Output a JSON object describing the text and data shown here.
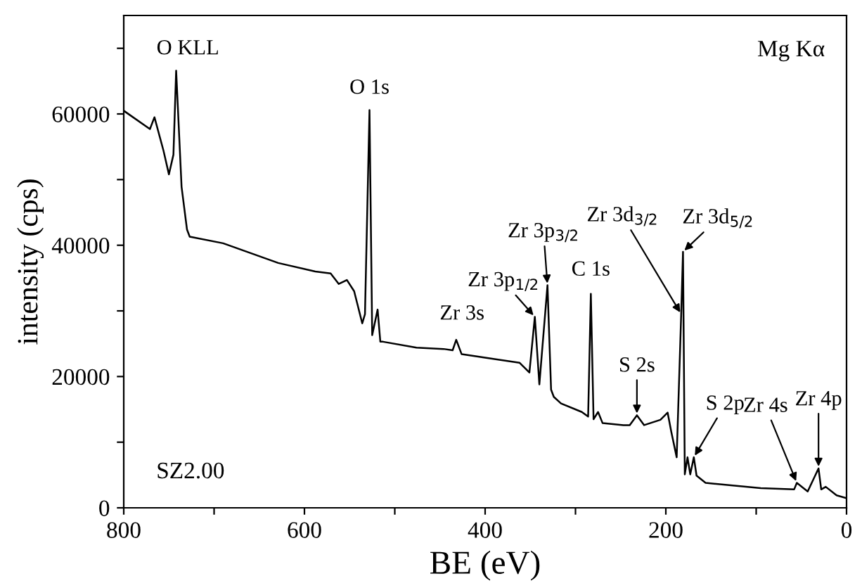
{
  "chart_data": {
    "type": "line",
    "xlabel": "BE (eV)",
    "ylabel": "intensity (cps)",
    "xlim": [
      800,
      0
    ],
    "xticks": [
      800,
      {
        "value": 700,
        "label": null
      },
      600,
      {
        "value": 500,
        "label": null
      },
      400,
      {
        "value": 300,
        "label": null
      },
      200,
      {
        "value": 100,
        "label": null
      },
      0
    ],
    "ylim": [
      0,
      75000
    ],
    "yticks": [
      0,
      {
        "value": 10000,
        "label": null
      },
      20000,
      {
        "value": 30000,
        "label": null
      },
      40000,
      {
        "value": 50000,
        "label": null
      },
      60000,
      {
        "value": 70000,
        "label": null
      }
    ],
    "grid": false,
    "legend": false,
    "marker": "none",
    "line_style": "solid",
    "series": [
      {
        "color": "#000000",
        "x": [
          800,
          797,
          771,
          766,
          756,
          750,
          745,
          742,
          736,
          730,
          727,
          690,
          629,
          588,
          571,
          562,
          553,
          545,
          536,
          533,
          528,
          525,
          519,
          516,
          513,
          476,
          446,
          436,
          432,
          426,
          362,
          351,
          345,
          340,
          331,
          327,
          324,
          316,
          293,
          286,
          283,
          280,
          275,
          270,
          247,
          240,
          232,
          224,
          206,
          198,
          194,
          188,
          183,
          181,
          179,
          176,
          173,
          169,
          166,
          156,
          95,
          58,
          55,
          43,
          31,
          28,
          23,
          11,
          1
        ],
        "values": [
          60500,
          60200,
          57700,
          59500,
          54400,
          50800,
          53800,
          66600,
          48900,
          42400,
          41300,
          40300,
          37300,
          36000,
          35700,
          34100,
          34700,
          33000,
          28100,
          29500,
          60600,
          26300,
          30200,
          25300,
          25300,
          24400,
          24200,
          24000,
          25600,
          23400,
          22100,
          20600,
          29100,
          18800,
          33900,
          18000,
          16900,
          15900,
          14600,
          13900,
          32600,
          13500,
          14600,
          12900,
          12600,
          12600,
          14100,
          12600,
          13400,
          14500,
          11600,
          7700,
          29500,
          39000,
          5100,
          7700,
          5100,
          7700,
          4900,
          3800,
          3000,
          2800,
          3800,
          2500,
          6000,
          2800,
          3200,
          1900,
          1500
        ]
      }
    ],
    "annotations": [
      {
        "text": "O KLL",
        "x": 742,
        "y": 66600
      },
      {
        "text": "O 1s",
        "x": 528,
        "y": 60600
      },
      {
        "text": "Zr 3s",
        "x": 432,
        "y": 25600
      },
      {
        "text": "Zr 3p$_{1/2}$",
        "x": 345,
        "y": 29100
      },
      {
        "text": "Zr 3p$_{3/2}$",
        "x": 331,
        "y": 33900
      },
      {
        "text": "C 1s",
        "x": 283,
        "y": 32600
      },
      {
        "text": "Zr 3d$_{3/2}$",
        "x": 183,
        "y": 29500
      },
      {
        "text": "Zr 3d$_{5/2}$",
        "x": 181,
        "y": 39000
      },
      {
        "text": "S 2s",
        "x": 232,
        "y": 14100
      },
      {
        "text": "S 2p",
        "x": 169,
        "y": 7700
      },
      {
        "text": "Zr 4s",
        "x": 55,
        "y": 3800
      },
      {
        "text": "Zr 4p",
        "x": 31,
        "y": 6000
      },
      "Mg Kα",
      "SZ2.00"
    ]
  }
}
